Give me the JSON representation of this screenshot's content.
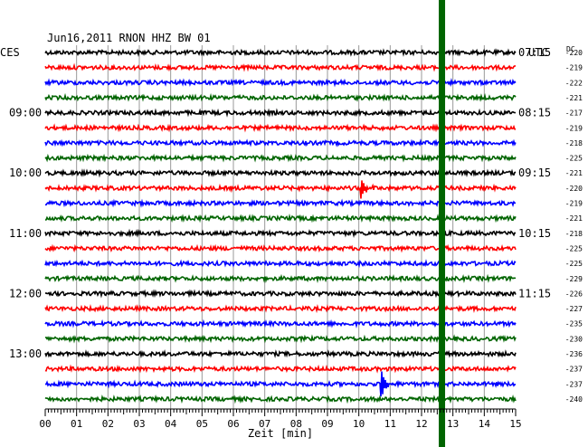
{
  "header": {
    "title": "Jun16,2011   RNON HHZ BW 01",
    "left_tz": "CES",
    "right_tz": "UTC",
    "dc_label": "DC"
  },
  "chart_data": {
    "type": "line",
    "title": "Jun16,2011   RNON HHZ BW 01",
    "xlabel": "Zeit [min]",
    "xlim": [
      0,
      15
    ],
    "x_ticks": [
      "00",
      "01",
      "02",
      "03",
      "04",
      "05",
      "06",
      "07",
      "08",
      "09",
      "10",
      "11",
      "12",
      "13",
      "14",
      "15"
    ],
    "trace_colors": [
      "#000000",
      "#ff0000",
      "#0000ff",
      "#006400"
    ],
    "left_time_labels": [
      {
        "row": 4,
        "text": "09:00"
      },
      {
        "row": 8,
        "text": "10:00"
      },
      {
        "row": 12,
        "text": "11:00"
      },
      {
        "row": 16,
        "text": "12:00"
      },
      {
        "row": 20,
        "text": "13:00"
      }
    ],
    "right_time_labels": [
      {
        "row": 0,
        "text": "07:15"
      },
      {
        "row": 4,
        "text": "08:15"
      },
      {
        "row": 8,
        "text": "09:15"
      },
      {
        "row": 12,
        "text": "10:15"
      },
      {
        "row": 16,
        "text": "11:15"
      }
    ],
    "dc_offsets": [
      -220,
      -219,
      -222,
      -221,
      -217,
      -219,
      -218,
      -225,
      -221,
      -220,
      -219,
      -221,
      -218,
      -225,
      -225,
      -229,
      -226,
      -227,
      -235,
      -230,
      -236,
      -237,
      -237,
      -240
    ],
    "events": [
      {
        "row": 9,
        "minute": 10.05
      },
      {
        "row": 22,
        "minute": 10.7
      }
    ],
    "marker": {
      "minute": 12.65,
      "color": "#006400"
    }
  }
}
